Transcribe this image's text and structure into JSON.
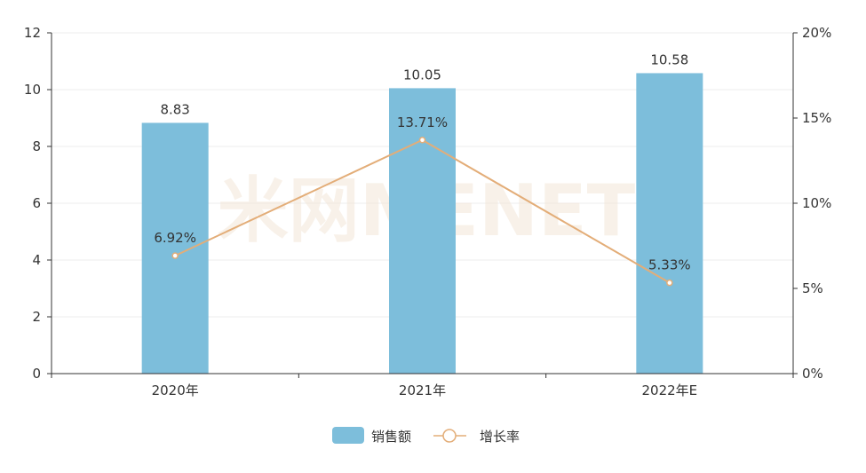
{
  "chart_data": {
    "type": "bar",
    "categories": [
      "2020年",
      "2021年",
      "2022年E"
    ],
    "series": [
      {
        "name": "销售额",
        "type": "bar",
        "axis": "left",
        "values": [
          8.83,
          10.05,
          10.58
        ],
        "labels": [
          "8.83",
          "10.05",
          "10.58"
        ],
        "color": "#7dbedb"
      },
      {
        "name": "增长率",
        "type": "line",
        "axis": "right",
        "values": [
          6.92,
          13.71,
          5.33
        ],
        "labels": [
          "6.92%",
          "13.71%",
          "5.33%"
        ],
        "color": "#e3ad78"
      }
    ],
    "y_left": {
      "ylim": [
        0,
        12
      ],
      "ticks": [
        "0",
        "2",
        "4",
        "6",
        "8",
        "10",
        "12"
      ]
    },
    "y_right": {
      "ylim": [
        0,
        20
      ],
      "ticks": [
        "0%",
        "5%",
        "10%",
        "15%",
        "20%"
      ]
    },
    "grid": true,
    "legend_placement": "bottom-center",
    "watermark": "米网MENET"
  }
}
